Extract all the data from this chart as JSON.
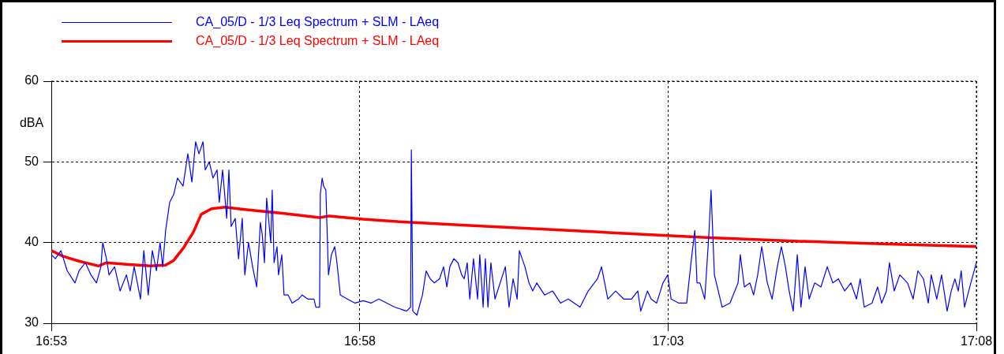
{
  "chart_data": {
    "type": "line",
    "ylabel": "dBA",
    "x": [
      16.8833,
      16.8844,
      16.8859,
      16.8876,
      16.8897,
      16.8908,
      16.8925,
      16.894,
      16.8955,
      16.8967,
      16.8972,
      16.8982,
      16.8989,
      16.9004,
      16.9019,
      16.9036,
      16.9046,
      16.9057,
      16.9074,
      16.9083,
      16.9095,
      16.9106,
      16.9117,
      16.9127,
      16.9134,
      16.9142,
      16.9153,
      16.9164,
      16.9174,
      16.9189,
      16.9202,
      16.9213,
      16.9223,
      16.9232,
      16.9243,
      16.9249,
      16.926,
      16.927,
      16.9281,
      16.9287,
      16.9296,
      16.9307,
      16.9313,
      16.9319,
      16.933,
      16.9339,
      16.9349,
      16.9356,
      16.9366,
      16.9377,
      16.9388,
      16.9398,
      16.9403,
      16.9409,
      16.9415,
      16.9426,
      16.943,
      16.9435,
      16.9443,
      16.9447,
      16.9456,
      16.9462,
      16.9473,
      16.9484,
      16.9501,
      16.9511,
      16.9526,
      16.9543,
      16.9548,
      16.9558,
      16.956,
      16.9565,
      16.9569,
      16.9575,
      16.9582,
      16.959,
      16.9599,
      16.9605,
      16.9614,
      16.9633,
      16.9654,
      16.9676,
      16.9697,
      16.9718,
      16.974,
      16.9761,
      16.9793,
      16.9804,
      16.9806,
      16.981,
      16.9821,
      16.9836,
      16.9846,
      16.9857,
      16.9868,
      16.9882,
      16.9893,
      16.9902,
      16.991,
      16.9921,
      16.9932,
      16.9942,
      16.9949,
      16.9957,
      16.9964,
      16.9974,
      16.9985,
      16.9991,
      17.0,
      17.0006,
      17.0013,
      17.0021,
      17.0032,
      17.006,
      17.007,
      17.0081,
      17.0092,
      17.0098,
      17.0113,
      17.0124,
      17.0134,
      17.0145,
      17.0166,
      17.0188,
      17.0209,
      17.023,
      17.0262,
      17.0284,
      17.0309,
      17.032,
      17.0337,
      17.0358,
      17.038,
      17.0401,
      17.0418,
      17.0426,
      17.0444,
      17.0454,
      17.0469,
      17.0486,
      17.0499,
      17.0508,
      17.0529,
      17.055,
      17.0563,
      17.0572,
      17.0578,
      17.0586,
      17.0599,
      17.061,
      17.0616,
      17.0625,
      17.0646,
      17.0667,
      17.0689,
      17.0695,
      17.0706,
      17.0721,
      17.0731,
      17.0742,
      17.0753,
      17.0768,
      17.0781,
      17.0795,
      17.0806,
      17.0817,
      17.0827,
      17.0838,
      17.0849,
      17.0859,
      17.087,
      17.0881,
      17.0896,
      17.0913,
      17.093,
      17.0945,
      17.096,
      17.0977,
      17.0994,
      17.1009,
      17.1019,
      17.103,
      17.1051,
      17.1066,
      17.1077,
      17.109,
      17.1098,
      17.1111,
      17.1126,
      17.1147,
      17.1162,
      17.1175,
      17.119,
      17.1203,
      17.1211,
      17.1226,
      17.1239,
      17.1254,
      17.1265,
      17.1275,
      17.1284,
      17.1292,
      17.1301,
      17.1318,
      17.1333
    ],
    "series": [
      {
        "name": "CA_05/D - 1/3 Leq Spectrum + SLM - LAeq",
        "color": "#0000ff",
        "values": [
          38.5,
          38,
          39,
          36.5,
          35,
          36.5,
          37.5,
          36,
          35,
          37,
          40,
          38,
          36,
          37,
          34,
          36,
          34,
          37,
          33,
          39,
          33.5,
          39,
          36.5,
          40,
          37,
          41.5,
          45,
          46,
          48,
          47,
          51,
          47.5,
          52.5,
          51,
          52.5,
          49,
          50,
          48,
          49,
          45,
          49,
          43,
          49,
          42,
          43,
          38,
          43,
          36,
          40,
          37,
          34.5,
          42.5,
          41,
          37.5,
          45.5,
          40,
          46.5,
          37.5,
          39.5,
          36,
          38.5,
          33.5,
          33.5,
          32.5,
          33,
          33.5,
          33,
          33,
          32,
          32,
          46,
          48,
          47,
          46.5,
          36,
          38.5,
          39.5,
          37.5,
          33.5,
          33,
          32.5,
          32.8,
          32.5,
          33,
          32.5,
          32,
          31.5,
          32,
          51.5,
          31.5,
          31,
          33.5,
          36.5,
          35.5,
          35,
          35.5,
          37,
          34.5,
          37,
          38,
          37.5,
          36,
          35.5,
          37.5,
          33,
          38,
          33,
          38.5,
          32,
          38,
          32,
          37.5,
          33,
          37,
          32,
          35.5,
          33,
          39,
          37,
          35,
          34,
          35,
          33.5,
          34,
          32.5,
          33,
          32,
          34,
          35.5,
          37,
          33,
          34,
          33,
          33,
          34,
          31.5,
          34,
          33,
          32.5,
          35,
          36,
          33,
          32.5,
          32.5,
          38,
          41.5,
          35,
          35,
          33,
          41,
          46.5,
          36,
          32,
          32.5,
          35,
          38.5,
          34.5,
          35,
          33.5,
          36,
          39.5,
          35,
          33,
          37,
          39.5,
          37,
          34,
          31.5,
          38.5,
          32,
          37,
          33,
          35,
          34.5,
          37,
          35,
          35.5,
          34,
          35,
          33,
          35.5,
          32,
          32.5,
          34.5,
          32.5,
          34,
          37.5,
          34,
          36,
          35,
          33,
          36.5,
          35.5,
          32.5,
          36,
          33,
          36,
          31.5,
          34,
          35.5,
          34,
          36.5,
          32,
          35,
          37.5
        ]
      },
      {
        "name": "CA_05/D - 1/3 Leq Spectrum + SLM - LAeq",
        "color": "#ff0000",
        "x": [
          16.8833,
          16.8865,
          16.8908,
          16.8961,
          16.8982,
          16.9036,
          16.91,
          16.9142,
          16.9164,
          16.9191,
          16.9217,
          16.9238,
          16.9266,
          16.9302,
          16.9356,
          16.9462,
          16.9558,
          16.9584,
          16.9676,
          16.9804,
          16.9974,
          17.0188,
          17.0401,
          17.0614,
          17.0827,
          17.1041,
          17.1333
        ],
        "values": [
          39,
          38.3,
          37.7,
          37.1,
          37.5,
          37.3,
          37.1,
          37.2,
          37.8,
          39.4,
          41.3,
          43.5,
          44.2,
          44.4,
          44.1,
          43.6,
          43.1,
          43.3,
          42.9,
          42.5,
          42.1,
          41.6,
          41.1,
          40.6,
          40.2,
          39.9,
          39.5
        ]
      }
    ],
    "xlim": [
      16.8833,
      17.1333
    ],
    "xticks": [
      {
        "value": 16.8833,
        "label": "16:53"
      },
      {
        "value": 16.9667,
        "label": "16:58"
      },
      {
        "value": 17.05,
        "label": "17:03"
      },
      {
        "value": 17.1333,
        "label": "17:08"
      }
    ],
    "ylim": [
      30,
      60
    ],
    "yticks": [
      30,
      40,
      50,
      60
    ],
    "grid": true,
    "legend": "top left",
    "marker": "none",
    "line_style": "solid"
  }
}
